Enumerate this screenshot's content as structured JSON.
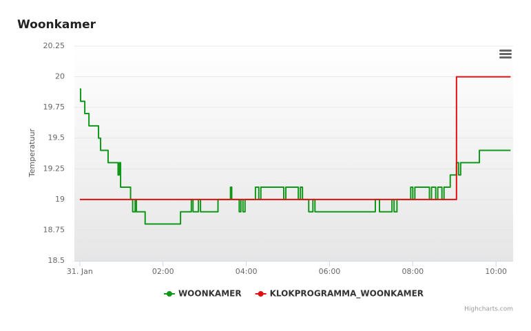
{
  "chart_data": {
    "type": "line",
    "title": "Woonkamer",
    "y_label": "Temperatuur",
    "credits": "Highcharts.com",
    "xlim": [
      -0.13,
      10.41
    ],
    "xticks": [
      {
        "value": 0,
        "label": "31. Jan"
      },
      {
        "value": 2,
        "label": "02:00"
      },
      {
        "value": 4,
        "label": "04:00"
      },
      {
        "value": 6,
        "label": "06:00"
      },
      {
        "value": 8,
        "label": "08:00"
      },
      {
        "value": 10,
        "label": "10:00"
      }
    ],
    "ylim": [
      18.5,
      20.25
    ],
    "yticks": [
      18.5,
      18.75,
      19,
      19.25,
      19.5,
      19.75,
      20,
      20.25
    ],
    "grid": true,
    "series": [
      {
        "name": "WOONKAMER",
        "color": "#109618",
        "x": [
          0,
          0.02,
          0.02,
          0.12,
          0.12,
          0.22,
          0.22,
          0.45,
          0.45,
          0.5,
          0.5,
          0.68,
          0.68,
          0.92,
          0.92,
          0.95,
          0.95,
          0.98,
          0.98,
          1.22,
          1.22,
          1.27,
          1.27,
          1.33,
          1.33,
          1.36,
          1.36,
          1.57,
          1.57,
          2.42,
          2.42,
          2.68,
          2.68,
          2.72,
          2.72,
          2.85,
          2.85,
          2.9,
          2.9,
          3.32,
          3.32,
          3.62,
          3.62,
          3.65,
          3.65,
          3.83,
          3.83,
          3.87,
          3.87,
          3.92,
          3.92,
          3.97,
          3.97,
          4.22,
          4.22,
          4.3,
          4.3,
          4.35,
          4.35,
          4.9,
          4.9,
          4.95,
          4.95,
          5.25,
          5.25,
          5.3,
          5.3,
          5.35,
          5.35,
          5.5,
          5.5,
          5.6,
          5.6,
          5.65,
          5.65,
          7.1,
          7.1,
          7.2,
          7.2,
          7.5,
          7.5,
          7.55,
          7.55,
          7.62,
          7.62,
          7.95,
          7.95,
          8.0,
          8.0,
          8.05,
          8.05,
          8.4,
          8.4,
          8.45,
          8.45,
          8.55,
          8.55,
          8.6,
          8.6,
          8.7,
          8.7,
          8.75,
          8.75,
          8.9,
          8.9,
          9.05,
          9.05,
          9.1,
          9.1,
          9.15,
          9.15,
          9.6,
          9.6,
          10.35
        ],
        "values": [
          19.9,
          19.9,
          19.8,
          19.8,
          19.7,
          19.7,
          19.6,
          19.6,
          19.5,
          19.5,
          19.4,
          19.4,
          19.3,
          19.3,
          19.2,
          19.2,
          19.3,
          19.3,
          19.1,
          19.1,
          19,
          19,
          18.9,
          18.9,
          19,
          19,
          18.9,
          18.9,
          18.8,
          18.8,
          18.9,
          18.9,
          19,
          19,
          18.9,
          18.9,
          19,
          19,
          18.9,
          18.9,
          19,
          19,
          19.1,
          19.1,
          19,
          19,
          18.9,
          18.9,
          19,
          19,
          18.9,
          18.9,
          19,
          19,
          19.1,
          19.1,
          19,
          19,
          19.1,
          19.1,
          19,
          19,
          19.1,
          19.1,
          19,
          19,
          19.1,
          19.1,
          19,
          19,
          18.9,
          18.9,
          19,
          19,
          18.9,
          18.9,
          19,
          19,
          18.9,
          18.9,
          19,
          19,
          18.9,
          18.9,
          19,
          19,
          19.1,
          19.1,
          19,
          19,
          19.1,
          19.1,
          19,
          19,
          19.1,
          19.1,
          19,
          19,
          19.1,
          19.1,
          19,
          19,
          19.1,
          19.1,
          19.2,
          19.2,
          19.3,
          19.3,
          19.2,
          19.2,
          19.3,
          19.3,
          19.4,
          19.4
        ]
      },
      {
        "name": "KLOKPROGRAMMA_WOONKAMER",
        "color": "#e01010",
        "x": [
          0,
          9.05,
          9.05,
          10.35
        ],
        "values": [
          19,
          19,
          20,
          20
        ]
      }
    ]
  }
}
